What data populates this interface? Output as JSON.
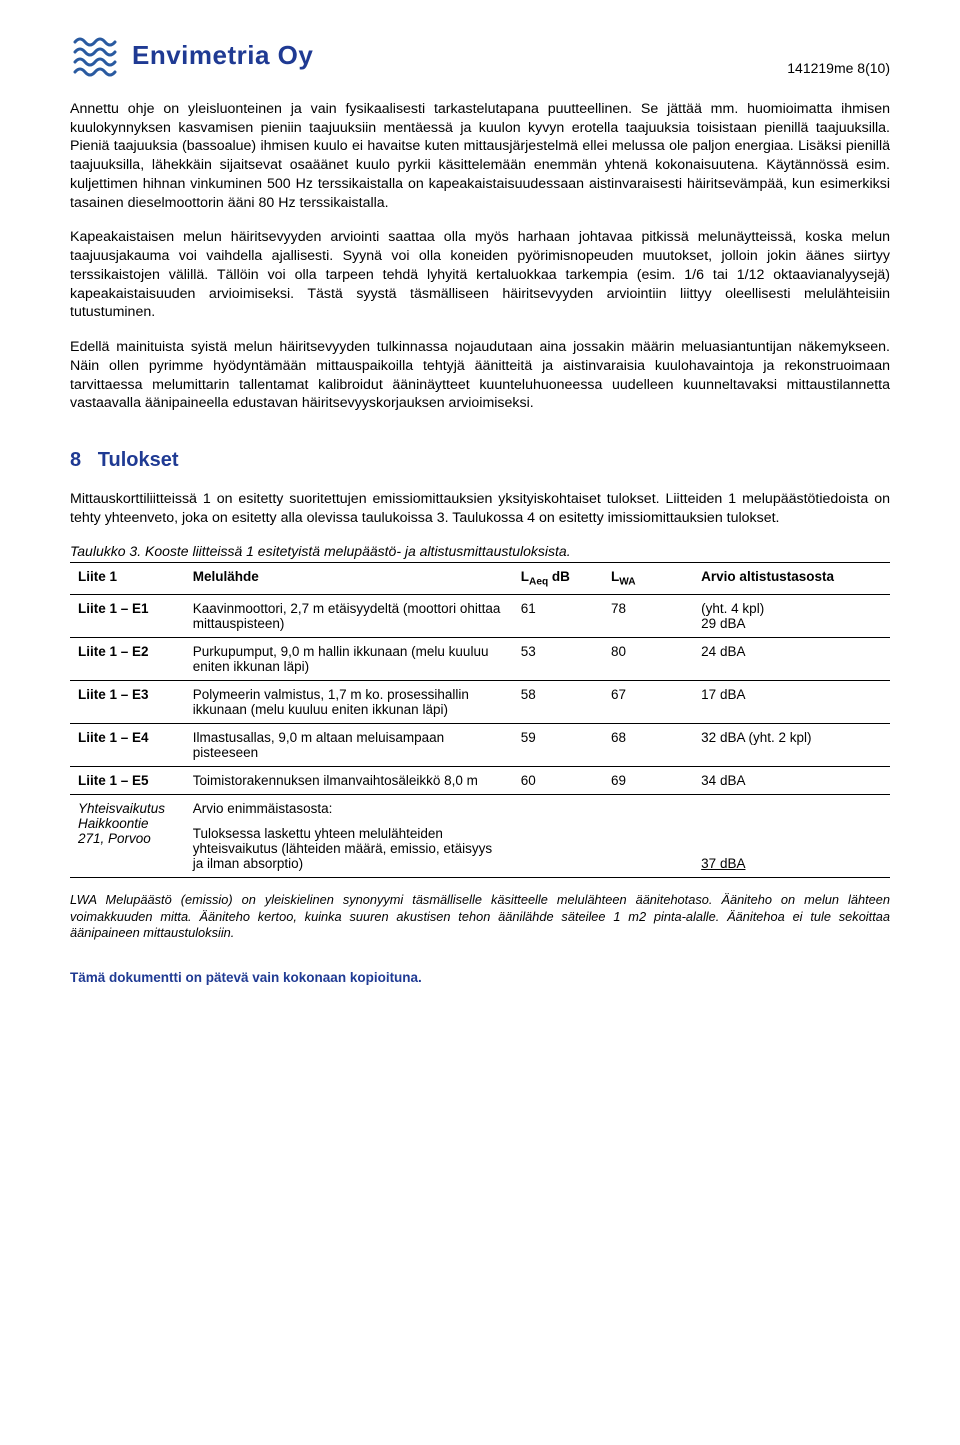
{
  "header": {
    "company_name": "Envimetria Oy",
    "page_number": "141219me 8(10)",
    "logo_color": "#2a5aa0"
  },
  "paragraphs": {
    "p1": "Annettu ohje on yleisluonteinen ja vain fysikaalisesti tarkastelutapana puutteellinen. Se jättää mm. huomioimatta ihmisen kuulokynnyksen kasvamisen pieniin taajuuksiin mentäessä ja kuulon kyvyn erotella taajuuksia toisistaan pienillä taajuuksilla. Pieniä taajuuksia (bassoalue) ihmisen kuulo ei havaitse kuten mittausjärjestelmä ellei melussa ole paljon energiaa. Lisäksi pienillä taajuuksilla, lähekkäin sijaitsevat osaäänet kuulo pyrkii käsittelemään enemmän yhtenä kokonaisuutena. Käytännössä esim. kuljettimen hihnan vinkuminen 500 Hz terssikaistalla on kapeakaistaisuudessaan aistinvaraisesti häiritsevämpää, kun esimerkiksi tasainen dieselmoottorin ääni 80 Hz terssikaistalla.",
    "p2": "Kapeakaistaisen melun häiritsevyyden arviointi saattaa olla myös harhaan johtavaa pitkissä melunäytteissä, koska melun taajuusjakauma voi vaihdella ajallisesti. Syynä voi olla koneiden pyörimisnopeuden muutokset, jolloin jokin äänes siirtyy terssikaistojen välillä. Tällöin voi olla tarpeen tehdä lyhyitä kertaluokkaa tarkempia (esim. 1/6 tai 1/12 oktaavianalyysejä) kapeakaistaisuuden arvioimiseksi. Tästä syystä täsmälliseen häiritsevyyden arviointiin liittyy oleellisesti melulähteisiin tutustuminen.",
    "p3": "Edellä mainituista syistä melun häiritsevyyden tulkinnassa nojaudutaan aina jossakin määrin meluasiantuntijan näkemykseen. Näin ollen pyrimme hyödyntämään mittauspaikoilla tehtyjä äänitteitä ja aistinvaraisia kuulohavaintoja ja rekonstruoimaan tarvittaessa melumittarin tallentamat kalibroidut ääninäytteet kuunteluhuoneessa uudelleen kuunneltavaksi mittaustilannetta vastaavalla äänipaineella edustavan häiritsevyyskorjauksen arvioimiseksi."
  },
  "section8": {
    "number": "8",
    "title": "Tulokset",
    "intro": "Mittauskorttiliitteissä 1 on esitetty suoritettujen emissiomittauksien yksityiskohtaiset tulokset. Liitteiden 1 melupäästötiedoista on tehty yhteenveto, joka on esitetty alla olevissa taulukoissa 3. Taulukossa 4 on esitetty imissiomittauksien tulokset.",
    "table3_caption": "Taulukko 3.  Kooste liitteissä 1 esitetyistä melupäästö- ja altistusmittaustuloksista."
  },
  "table3": {
    "headers": {
      "c1": "Liite 1",
      "c2": "Melulähde",
      "c3_prefix": "L",
      "c3_sub": "Aeq",
      "c3_suffix": " dB",
      "c4_prefix": "L",
      "c4_sub": "WA",
      "c5": "Arvio altistustasosta"
    },
    "rows": [
      {
        "id": "Liite 1 – E1",
        "src": "Kaavinmoottori, 2,7 m etäisyydeltä (moottori ohittaa mittauspisteen)",
        "laeq": "61",
        "lwa": "78",
        "arvio": "(yht. 4 kpl)\n29 dBA"
      },
      {
        "id": "Liite 1 – E2",
        "src": "Purkupumput, 9,0 m hallin ikkunaan (melu kuuluu eniten ikkunan läpi)",
        "laeq": "53",
        "lwa": "80",
        "arvio": "24 dBA"
      },
      {
        "id": "Liite 1 – E3",
        "src": "Polymeerin valmistus, 1,7 m ko. prosessihallin ikkunaan (melu kuuluu eniten ikkunan läpi)",
        "laeq": "58",
        "lwa": "67",
        "arvio": "17 dBA"
      },
      {
        "id": "Liite 1 – E4",
        "src": "Ilmastusallas, 9,0 m altaan meluisampaan pisteeseen",
        "laeq": "59",
        "lwa": "68",
        "arvio": "32 dBA (yht. 2 kpl)"
      },
      {
        "id": "Liite 1 – E5",
        "src": "Toimistorakennuksen ilmanvaihtosäleikkö 8,0 m",
        "laeq": "60",
        "lwa": "69",
        "arvio": "34 dBA"
      }
    ],
    "summary_row": {
      "id": "Yhteisvaikutus Haikkoontie 271, Porvoo",
      "src_line1": "Arvio enimmäistasosta:",
      "src_line2": "Tuloksessa laskettu yhteen melulähteiden yhteisvaikutus (lähteiden määrä, emissio, etäisyys ja ilman absorptio)",
      "laeq": "",
      "lwa": "",
      "arvio": "37 dBA"
    }
  },
  "lwa_note": "LWA Melupäästö (emissio) on yleiskielinen synonyymi täsmälliselle käsitteelle melulähteen äänitehotaso. Ääniteho on melun lähteen voimakkuuden mitta. Ääniteho kertoo, kuinka suuren akustisen tehon äänilähde säteilee 1 m2 pinta-alalle. Äänitehoa ei tule sekoittaa äänipaineen mittaustuloksiin.",
  "footer": "Tämä dokumentti on pätevä vain kokonaan kopioituna."
}
